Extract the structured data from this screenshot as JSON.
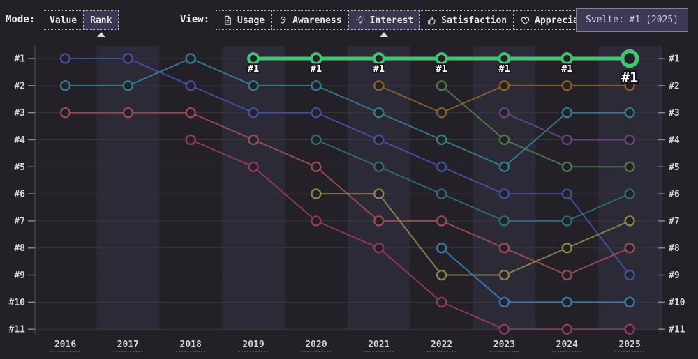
{
  "toolbar": {
    "mode_label": "Mode:",
    "mode_options": [
      {
        "label": "Value",
        "selected": false
      },
      {
        "label": "Rank",
        "selected": true
      }
    ],
    "view_label": "View:",
    "view_options": [
      {
        "label": "Usage",
        "icon": "document-icon",
        "selected": false
      },
      {
        "label": "Awareness",
        "icon": "ear-icon",
        "selected": false
      },
      {
        "label": "Interest",
        "icon": "lightbulb-icon",
        "selected": true
      },
      {
        "label": "Satisfaction",
        "icon": "thumbs-up-icon",
        "selected": false
      },
      {
        "label": "Appreciation",
        "icon": "heart-icon",
        "selected": false
      }
    ]
  },
  "tooltip": {
    "text": "Svelte: #1 (2025)"
  },
  "colors": {
    "background": "#232027",
    "band": "#2d2a38",
    "grid": "#3b383f",
    "axis": "#4a474f",
    "tick": "#8b888f",
    "label": "#d8d5cf",
    "selected_button_bg": "#3b3651",
    "tooltip_bg": "#3d3853",
    "highlight_green": "#40c573"
  },
  "chart_data": {
    "type": "line",
    "subtype": "bump-rank-chart",
    "x": [
      "2016",
      "2017",
      "2018",
      "2019",
      "2020",
      "2021",
      "2022",
      "2023",
      "2024",
      "2025"
    ],
    "rank_axis_labels": [
      "#1",
      "#2",
      "#3",
      "#4",
      "#5",
      "#6",
      "#7",
      "#8",
      "#9",
      "#10",
      "#11"
    ],
    "ylim": [
      1,
      11
    ],
    "grid": true,
    "banded_columns": [
      "2017",
      "2019",
      "2021",
      "2023",
      "2025"
    ],
    "series": [
      {
        "name": "blue",
        "color": "#4552a8",
        "ranks": [
          1,
          1,
          2,
          3,
          3,
          4,
          5,
          6,
          6,
          9
        ]
      },
      {
        "name": "teal",
        "color": "#348091",
        "ranks": [
          2,
          2,
          1,
          2,
          2,
          3,
          4,
          5,
          3,
          3
        ]
      },
      {
        "name": "red",
        "color": "#a04e59",
        "ranks": [
          3,
          3,
          3,
          4,
          5,
          7,
          7,
          8,
          9,
          8
        ]
      },
      {
        "name": "maroon",
        "color": "#963a61",
        "ranks": [
          null,
          null,
          4,
          5,
          7,
          8,
          10,
          11,
          11,
          11
        ]
      },
      {
        "name": "teal-dark",
        "color": "#2e6e7c",
        "ranks": [
          null,
          null,
          null,
          null,
          4,
          5,
          6,
          7,
          7,
          6
        ]
      },
      {
        "name": "khaki",
        "color": "#8f894e",
        "ranks": [
          null,
          null,
          null,
          null,
          6,
          6,
          9,
          9,
          8,
          7
        ]
      },
      {
        "name": "gold",
        "color": "#8a6527",
        "ranks": [
          null,
          null,
          null,
          null,
          null,
          2,
          3,
          2,
          2,
          2
        ]
      },
      {
        "name": "green-olive",
        "color": "#507c4b",
        "ranks": [
          null,
          null,
          null,
          null,
          null,
          null,
          2,
          4,
          5,
          5
        ]
      },
      {
        "name": "steel-blue",
        "color": "#3d7db2",
        "ranks": [
          null,
          null,
          null,
          null,
          null,
          null,
          8,
          10,
          10,
          10
        ]
      },
      {
        "name": "purple",
        "color": "#66487f",
        "ranks": [
          null,
          null,
          null,
          null,
          null,
          null,
          null,
          3,
          4,
          4
        ]
      },
      {
        "name": "Svelte",
        "color": "#40c573",
        "highlighted": true,
        "ranks": [
          null,
          null,
          null,
          1,
          1,
          1,
          1,
          1,
          1,
          1
        ],
        "point_label": "#1",
        "end_label": "#1"
      }
    ]
  }
}
